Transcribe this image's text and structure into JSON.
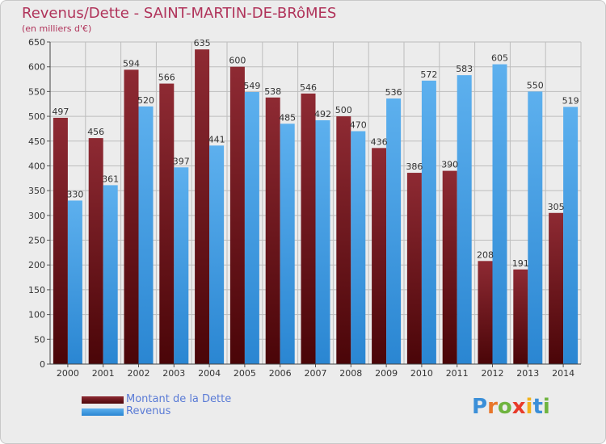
{
  "chart_data": {
    "type": "bar",
    "title": "Revenus/Dette - SAINT-MARTIN-DE-BRôMES",
    "subtitle": "(en milliers d'€)",
    "categories": [
      "2000",
      "2001",
      "2002",
      "2003",
      "2004",
      "2005",
      "2006",
      "2007",
      "2008",
      "2009",
      "2010",
      "2011",
      "2012",
      "2013",
      "2014"
    ],
    "series": [
      {
        "name": "Montant de la Dette",
        "color": "#7a1f27",
        "values": [
          497,
          456,
          594,
          566,
          635,
          600,
          538,
          546,
          500,
          436,
          386,
          390,
          208,
          191,
          305
        ]
      },
      {
        "name": "Revenus",
        "color": "#4aa3e6",
        "values": [
          330,
          361,
          520,
          397,
          441,
          549,
          485,
          492,
          470,
          536,
          572,
          583,
          605,
          550,
          519
        ]
      }
    ],
    "ylim": [
      0,
      650
    ],
    "yticks": [
      0,
      50,
      100,
      150,
      200,
      250,
      300,
      350,
      400,
      450,
      500,
      550,
      600,
      650
    ],
    "grid": true,
    "legend_position": "bottom-left"
  },
  "logo": {
    "letters": [
      {
        "ch": "P",
        "color": "#3b8fd8"
      },
      {
        "ch": "r",
        "color": "#e8762a"
      },
      {
        "ch": "o",
        "color": "#6fb43f"
      },
      {
        "ch": "x",
        "color": "#e83b2a"
      },
      {
        "ch": "i",
        "color": "#f2b21c"
      },
      {
        "ch": "t",
        "color": "#3b8fd8"
      },
      {
        "ch": "i",
        "color": "#6fb43f"
      }
    ]
  }
}
